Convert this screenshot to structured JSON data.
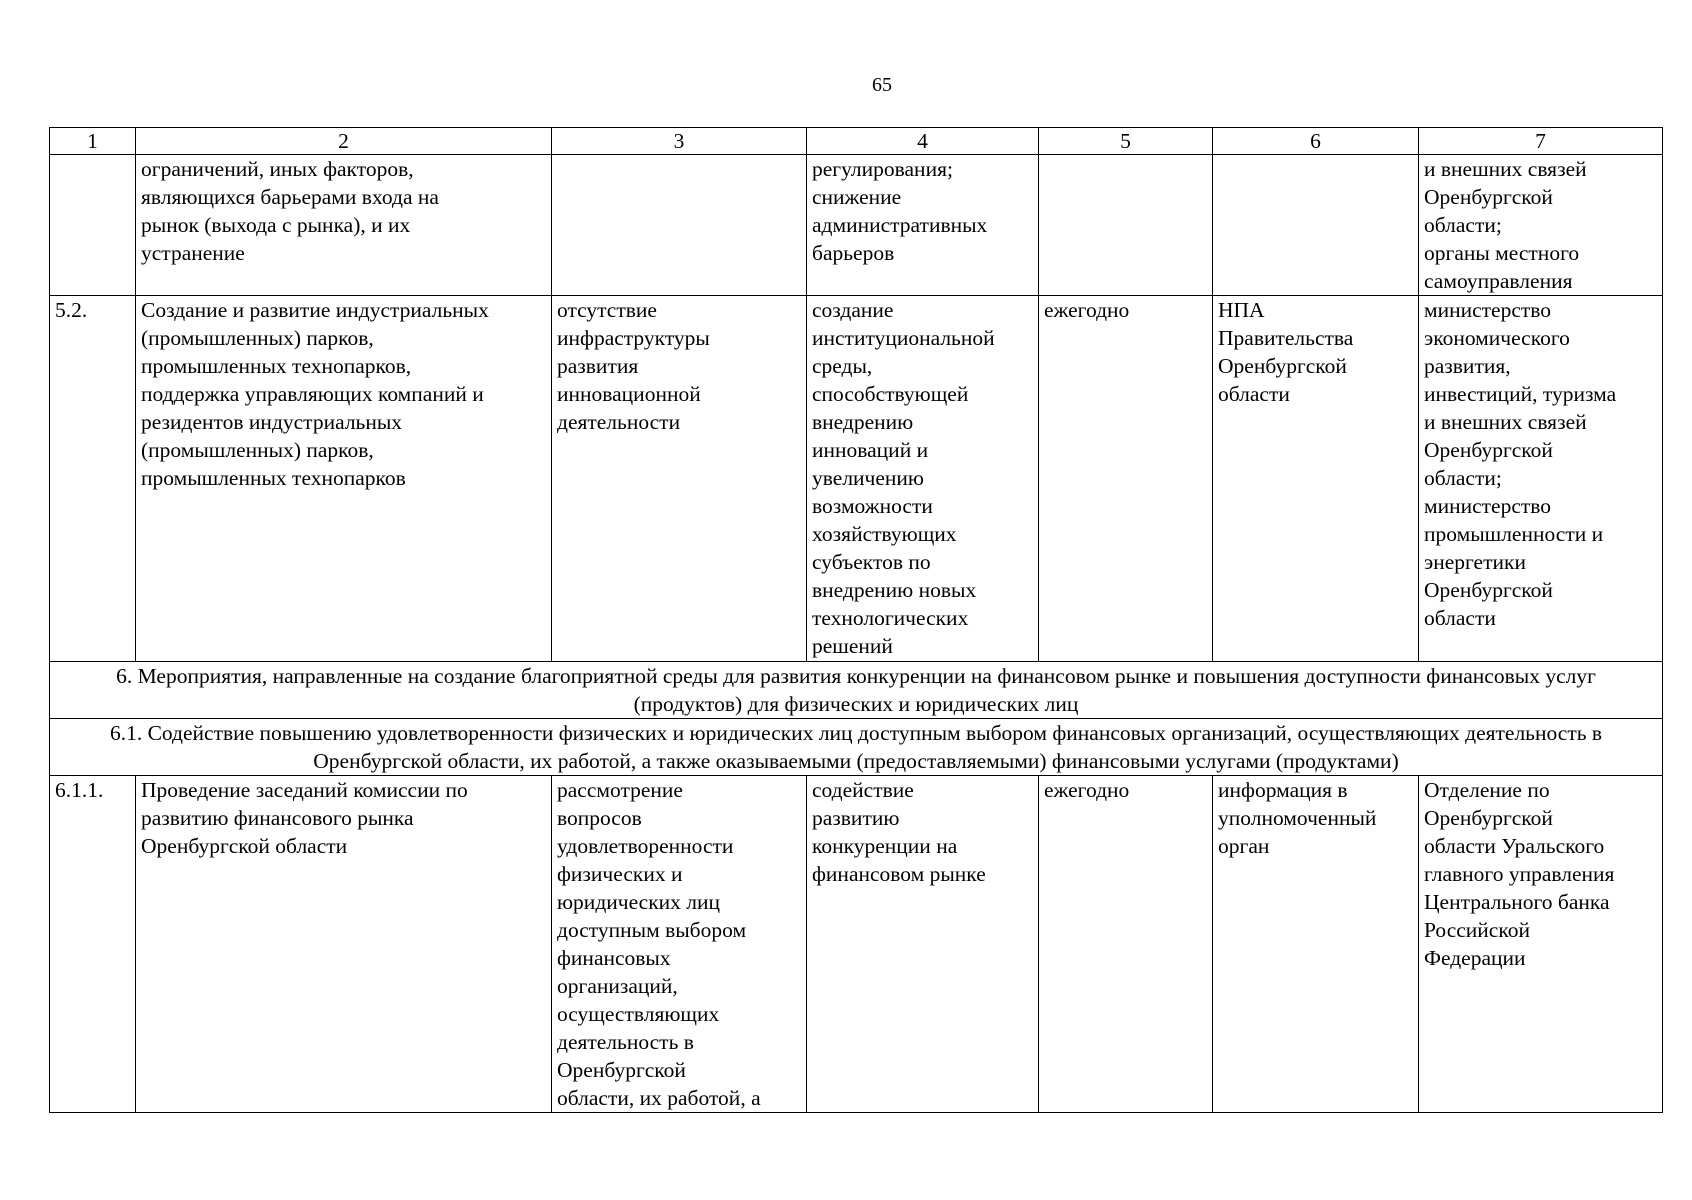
{
  "page_number": "65",
  "header": [
    "1",
    "2",
    "3",
    "4",
    "5",
    "6",
    "7"
  ],
  "rows": [
    {
      "c1": "",
      "c2": "ограничений, иных факторов,\nявляющихся барьерами входа на\nрынок (выхода с рынка), и их\nустранение",
      "c3": "",
      "c4": "регулирования;\nснижение\nадминистративных\nбарьеров",
      "c5": "",
      "c6": "",
      "c7": "и внешних связей\nОренбургской\nобласти;\nорганы местного\nсамоуправления"
    },
    {
      "c1": "5.2.",
      "c2": "Создание и развитие индустриальных\n(промышленных) парков,\nпромышленных технопарков,\nподдержка управляющих компаний и\nрезидентов индустриальных\n(промышленных) парков,\nпромышленных технопарков",
      "c3": "отсутствие\nинфраструктуры\nразвития\nинновационной\nдеятельности",
      "c4": "создание\nинституциональной\nсреды,\nспособствующей\nвнедрению\nинноваций и\nувеличению\nвозможности\nхозяйствующих\nсубъектов по\nвнедрению новых\nтехнологических\nрешений",
      "c5": "ежегодно",
      "c6": "НПА\nПравительства\nОренбургской\nобласти",
      "c7": "министерство\nэкономического\nразвития,\nинвестиций, туризма\nи внешних связей\nОренбургской\nобласти;\nминистерство\nпромышленности и\nэнергетики\nОренбургской\nобласти"
    }
  ],
  "section6": "6. Мероприятия, направленные на создание благоприятной среды для развития конкуренции на финансовом рынке и повышения доступности финансовых услуг (продуктов) для физических и юридических лиц",
  "section61": "6.1. Содействие повышению удовлетворенности физических и юридических лиц доступным выбором финансовых организаций, осуществляющих деятельность в Оренбургской области, их работой, а также оказываемыми (предоставляемыми) финансовыми услугами (продуктами)",
  "row611": {
    "c1": "6.1.1.",
    "c2": "Проведение заседаний комиссии по\nразвитию финансового рынка\nОренбургской области",
    "c3": "рассмотрение\nвопросов\nудовлетворенности\nфизических и\nюридических лиц\nдоступным выбором\nфинансовых\nорганизаций,\nосуществляющих\nдеятельность в\nОренбургской\nобласти, их работой, а",
    "c4": "содействие\nразвитию\nконкуренции на\nфинансовом рынке",
    "c5": "ежегодно",
    "c6": "информация в\nуполномоченный\nорган",
    "c7": "Отделение по\nОренбургской\nобласти Уральского\nглавного управления\nЦентрального банка\nРоссийской\nФедерации"
  }
}
